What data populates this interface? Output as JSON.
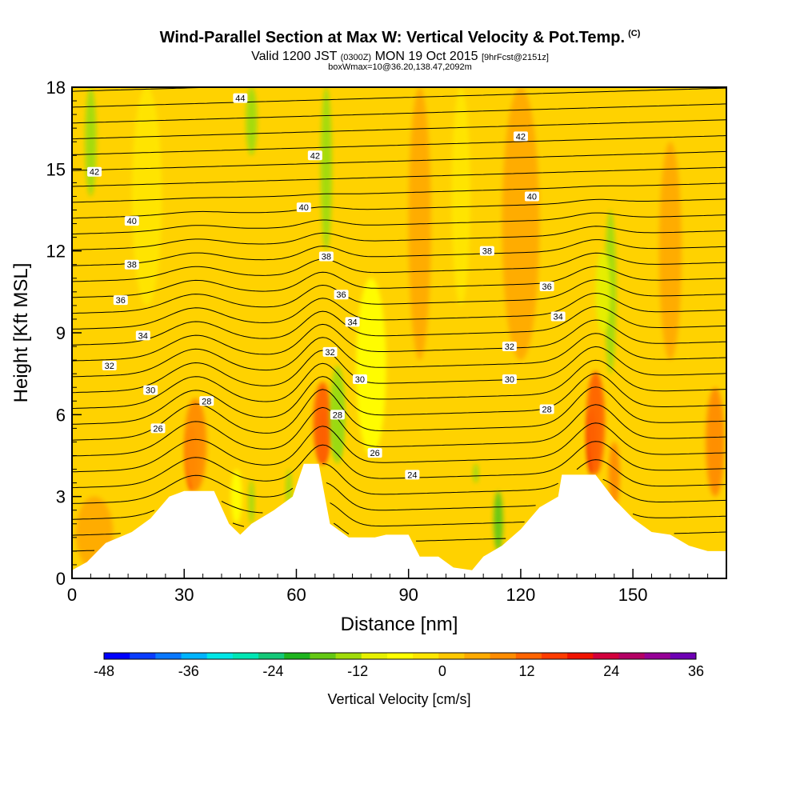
{
  "title": {
    "main": "Wind-Parallel Section at Max W: Vertical Velocity & Pot.Temp.",
    "copyright": "(C)",
    "valid_prefix": "Valid 1200 JST",
    "valid_utc": "(0300Z)",
    "valid_date": "MON 19 Oct 2015",
    "forecast": "[9hrFcst@2151z]",
    "box": "boxWmax=10@36.20,138.47,2092m"
  },
  "chart_data": {
    "type": "heatmap",
    "xlabel": "Distance [nm]",
    "ylabel": "Height [Kft MSL]",
    "xlim": [
      0,
      175
    ],
    "ylim": [
      0,
      18
    ],
    "x_ticks": [
      "0",
      "30",
      "60",
      "90",
      "120",
      "150"
    ],
    "y_ticks": [
      "0",
      "3",
      "6",
      "9",
      "12",
      "15",
      "18"
    ],
    "x_tick_values": [
      0,
      30,
      60,
      90,
      120,
      150
    ],
    "y_tick_values": [
      0,
      3,
      6,
      9,
      12,
      15,
      18
    ],
    "terrain_kft": [
      [
        0,
        0.3
      ],
      [
        4,
        0.6
      ],
      [
        9,
        1.3
      ],
      [
        16,
        1.7
      ],
      [
        21,
        2.2
      ],
      [
        26,
        3.0
      ],
      [
        30,
        3.2
      ],
      [
        38,
        3.2
      ],
      [
        42,
        2.0
      ],
      [
        45,
        1.6
      ],
      [
        48,
        2.0
      ],
      [
        54,
        2.5
      ],
      [
        59,
        3.0
      ],
      [
        62,
        4.2
      ],
      [
        66,
        4.2
      ],
      [
        69,
        2.0
      ],
      [
        74,
        1.5
      ],
      [
        81,
        1.5
      ],
      [
        84,
        1.6
      ],
      [
        90,
        1.6
      ],
      [
        93,
        0.8
      ],
      [
        98,
        0.8
      ],
      [
        102,
        0.4
      ],
      [
        107,
        0.3
      ],
      [
        110,
        0.8
      ],
      [
        115,
        1.2
      ],
      [
        120,
        1.8
      ],
      [
        125,
        2.6
      ],
      [
        130,
        3.0
      ],
      [
        131,
        3.8
      ],
      [
        140,
        3.8
      ],
      [
        145,
        2.9
      ],
      [
        150,
        2.2
      ],
      [
        155,
        1.7
      ],
      [
        160,
        1.6
      ],
      [
        165,
        1.2
      ],
      [
        170,
        1.0
      ],
      [
        175,
        1.0
      ]
    ],
    "theta_contour_labels": [
      {
        "text": "44",
        "x": 45,
        "y": 17.6
      },
      {
        "text": "42",
        "x": 6,
        "y": 14.9
      },
      {
        "text": "42",
        "x": 65,
        "y": 15.5
      },
      {
        "text": "42",
        "x": 120,
        "y": 16.2
      },
      {
        "text": "40",
        "x": 16,
        "y": 13.1
      },
      {
        "text": "40",
        "x": 62,
        "y": 13.6
      },
      {
        "text": "40",
        "x": 123,
        "y": 14.0
      },
      {
        "text": "38",
        "x": 16,
        "y": 11.5
      },
      {
        "text": "38",
        "x": 68,
        "y": 11.8
      },
      {
        "text": "38",
        "x": 111,
        "y": 12.0
      },
      {
        "text": "36",
        "x": 13,
        "y": 10.2
      },
      {
        "text": "36",
        "x": 72,
        "y": 10.4
      },
      {
        "text": "36",
        "x": 127,
        "y": 10.7
      },
      {
        "text": "34",
        "x": 19,
        "y": 8.9
      },
      {
        "text": "34",
        "x": 75,
        "y": 9.4
      },
      {
        "text": "34",
        "x": 130,
        "y": 9.6
      },
      {
        "text": "32",
        "x": 10,
        "y": 7.8
      },
      {
        "text": "32",
        "x": 69,
        "y": 8.3
      },
      {
        "text": "32",
        "x": 117,
        "y": 8.5
      },
      {
        "text": "30",
        "x": 21,
        "y": 6.9
      },
      {
        "text": "30",
        "x": 77,
        "y": 7.3
      },
      {
        "text": "30",
        "x": 117,
        "y": 7.3
      },
      {
        "text": "28",
        "x": 36,
        "y": 6.5
      },
      {
        "text": "28",
        "x": 71,
        "y": 6.0
      },
      {
        "text": "28",
        "x": 127,
        "y": 6.2
      },
      {
        "text": "26",
        "x": 23,
        "y": 5.5
      },
      {
        "text": "26",
        "x": 81,
        "y": 4.6
      },
      {
        "text": "24",
        "x": 91,
        "y": 3.8
      }
    ],
    "colorbar": {
      "label": "Vertical Velocity [cm/s]",
      "ticks": [
        "-48",
        "-36",
        "-24",
        "-12",
        "0",
        "12",
        "24",
        "36"
      ],
      "colors": [
        "#0000ff",
        "#0a3cff",
        "#0a78ff",
        "#00b4ff",
        "#00e6e6",
        "#00e6b4",
        "#14c878",
        "#1eb41e",
        "#64c814",
        "#a0dc0a",
        "#e6f000",
        "#ffff00",
        "#ffe600",
        "#ffc800",
        "#ffaa00",
        "#ff8c00",
        "#ff6400",
        "#ff3c00",
        "#f01400",
        "#d2003c",
        "#b40064",
        "#960096",
        "#6e00b4"
      ]
    },
    "shading": {
      "base_color": "#ffd200",
      "plumes": [
        {
          "x": 32,
          "y0": 3.2,
          "y1": 5.6,
          "w": 3,
          "color": "#ff3c00"
        },
        {
          "x": 33,
          "y0": 3.2,
          "y1": 6.6,
          "w": 6,
          "color": "#ff8c00"
        },
        {
          "x": 67,
          "y0": 4.2,
          "y1": 6.2,
          "w": 2.5,
          "color": "#e61400"
        },
        {
          "x": 67,
          "y0": 4.2,
          "y1": 7.2,
          "w": 5,
          "color": "#ff6400"
        },
        {
          "x": 139,
          "y0": 3.8,
          "y1": 6.2,
          "w": 2.5,
          "color": "#e61400"
        },
        {
          "x": 140,
          "y0": 3.8,
          "y1": 7.6,
          "w": 5,
          "color": "#ff6400"
        },
        {
          "x": 145,
          "y0": 2.6,
          "y1": 5.0,
          "w": 3,
          "color": "#ff8c00"
        },
        {
          "x": 6,
          "y0": 0.3,
          "y1": 3.0,
          "w": 10,
          "color": "#ffaa00"
        },
        {
          "x": 172,
          "y0": 3.0,
          "y1": 7.0,
          "w": 5,
          "color": "#ff8c00"
        },
        {
          "x": 120,
          "y0": 8.0,
          "y1": 18.0,
          "w": 10,
          "color": "#ffaa00"
        },
        {
          "x": 93,
          "y0": 8.0,
          "y1": 18.0,
          "w": 6,
          "color": "#ffaa00"
        },
        {
          "x": 160,
          "y0": 8.0,
          "y1": 16.0,
          "w": 6,
          "color": "#ffaa00"
        }
      ],
      "updrafts_neg": [
        {
          "x": 71,
          "y0": 4.4,
          "y1": 7.2,
          "w": 2.2,
          "color": "#14c878"
        },
        {
          "x": 71,
          "y0": 4.2,
          "y1": 7.8,
          "w": 4,
          "color": "#a0dc0a"
        },
        {
          "x": 68,
          "y0": 12.0,
          "y1": 18.0,
          "w": 3,
          "color": "#a0dc0a"
        },
        {
          "x": 48,
          "y0": 15.5,
          "y1": 18.0,
          "w": 3,
          "color": "#a0dc0a"
        },
        {
          "x": 5,
          "y0": 14.0,
          "y1": 18.0,
          "w": 3,
          "color": "#a0dc0a"
        },
        {
          "x": 144,
          "y0": 7.5,
          "y1": 13.5,
          "w": 3,
          "color": "#a0dc0a"
        },
        {
          "x": 142,
          "y0": 9.0,
          "y1": 12.0,
          "w": 4,
          "color": "#e6f000"
        },
        {
          "x": 114,
          "y0": 1.0,
          "y1": 3.2,
          "w": 2.5,
          "color": "#64c814"
        },
        {
          "x": 48,
          "y0": 2.0,
          "y1": 3.6,
          "w": 1.5,
          "color": "#a0dc0a"
        },
        {
          "x": 58,
          "y0": 2.5,
          "y1": 4.0,
          "w": 1.5,
          "color": "#a0dc0a"
        },
        {
          "x": 108,
          "y0": 3.5,
          "y1": 4.2,
          "w": 1.5,
          "color": "#a0dc0a"
        },
        {
          "x": 44,
          "y0": 2.0,
          "y1": 4.0,
          "w": 3,
          "color": "#ffff00"
        },
        {
          "x": 80,
          "y0": 4.5,
          "y1": 11.0,
          "w": 8,
          "color": "#ffff00"
        },
        {
          "x": 20,
          "y0": 10.0,
          "y1": 18.0,
          "w": 8,
          "color": "#ffe600"
        },
        {
          "x": 104,
          "y0": 10.0,
          "y1": 18.0,
          "w": 5,
          "color": "#ffe600"
        }
      ]
    }
  }
}
